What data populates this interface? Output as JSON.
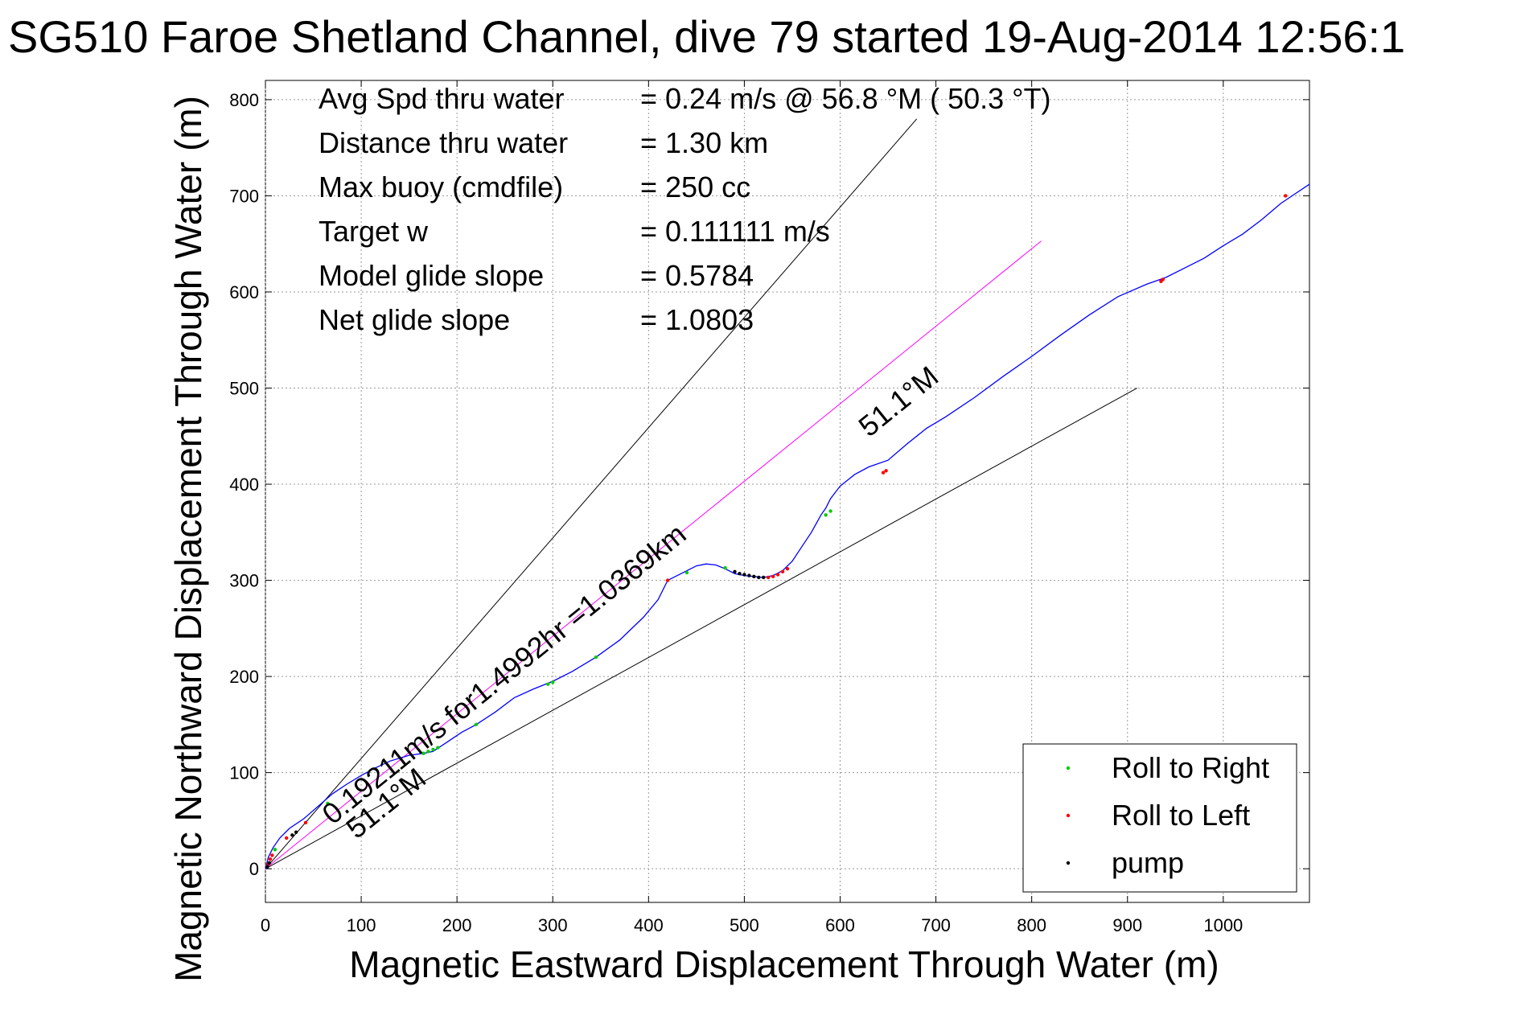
{
  "chart_data": {
    "type": "line",
    "title": "SG510 Faroe Shetland Channel, dive 79 started 19-Aug-2014 12:56:1",
    "xlabel": "Magnetic Eastward Displacement Through Water (m)",
    "ylabel": "Magnetic Northward Displacement Through Water (m)",
    "xlim": [
      0,
      1090
    ],
    "ylim": [
      -35,
      820
    ],
    "xticks": [
      0,
      100,
      200,
      300,
      400,
      500,
      600,
      700,
      800,
      900,
      1000
    ],
    "yticks": [
      0,
      100,
      200,
      300,
      400,
      500,
      600,
      700,
      800
    ],
    "grid": true,
    "legend_position": "bottom-right",
    "legend": [
      {
        "label": "Roll to Right",
        "color": "#00cc00"
      },
      {
        "label": "Roll to Left",
        "color": "#ff0000"
      },
      {
        "label": "pump",
        "color": "#000000"
      }
    ],
    "info": [
      {
        "label": "Avg Spd thru water",
        "value": "=  0.24 m/s @  56.8 °M ( 50.3 °T)"
      },
      {
        "label": "Distance thru water",
        "value": "=  1.30 km"
      },
      {
        "label": "Max buoy (cmdfile)",
        "value": "= 250 cc"
      },
      {
        "label": "Target w",
        "value": "= 0.111111 m/s"
      },
      {
        "label": "Model glide slope",
        "value": "= 0.5784"
      },
      {
        "label": "Net glide slope",
        "value": "= 1.0803"
      }
    ],
    "annotations": {
      "speed_label": "0.19211m/s for1.4992hr =1.0369km",
      "heading_label_lower": "51.1°M",
      "heading_label_upper": "51.1°M"
    },
    "reference_lines": [
      {
        "name": "upper-bound",
        "color": "#000000",
        "x": [
          0,
          680
        ],
        "y": [
          0,
          780
        ]
      },
      {
        "name": "lower-bound",
        "color": "#000000",
        "x": [
          0,
          910
        ],
        "y": [
          0,
          500
        ]
      },
      {
        "name": "heading",
        "color": "#ff00ff",
        "x": [
          0,
          810
        ],
        "y": [
          0,
          653
        ]
      }
    ],
    "series": [
      {
        "name": "track",
        "color": "#0000ff",
        "x": [
          0,
          3,
          8,
          15,
          25,
          40,
          55,
          70,
          85,
          100,
          115,
          130,
          150,
          165,
          175,
          190,
          205,
          220,
          240,
          260,
          280,
          300,
          320,
          345,
          370,
          395,
          410,
          420,
          430,
          440,
          450,
          460,
          470,
          480,
          490,
          500,
          510,
          520,
          530,
          540,
          550,
          560,
          570,
          580,
          585,
          590,
          600,
          615,
          630,
          650,
          670,
          690,
          710,
          740,
          770,
          800,
          830,
          860,
          890,
          920,
          940,
          960,
          980,
          1000,
          1020,
          1040,
          1060,
          1075,
          1090
        ],
        "y": [
          0,
          12,
          22,
          32,
          42,
          52,
          65,
          78,
          88,
          97,
          105,
          112,
          118,
          120,
          122,
          132,
          142,
          150,
          163,
          178,
          187,
          195,
          205,
          220,
          238,
          262,
          280,
          300,
          305,
          310,
          315,
          317,
          316,
          312,
          307,
          305,
          304,
          303,
          305,
          310,
          320,
          335,
          350,
          368,
          375,
          385,
          398,
          410,
          418,
          425,
          442,
          458,
          470,
          490,
          512,
          533,
          555,
          576,
          595,
          608,
          615,
          625,
          635,
          648,
          660,
          675,
          692,
          702,
          712
        ]
      },
      {
        "name": "Roll to Right",
        "color": "#00cc00",
        "x": [
          10,
          65,
          165,
          170,
          175,
          180,
          220,
          295,
          300,
          345,
          440,
          480,
          585,
          590
        ],
        "y": [
          20,
          68,
          120,
          122,
          124,
          126,
          150,
          192,
          194,
          220,
          308,
          313,
          368,
          372
        ]
      },
      {
        "name": "Roll to Left",
        "color": "#ff0000",
        "x": [
          3,
          5,
          7,
          22,
          42,
          420,
          525,
          530,
          535,
          540,
          545,
          645,
          648,
          935,
          937,
          1065
        ],
        "y": [
          5,
          10,
          14,
          32,
          48,
          300,
          303,
          304,
          306,
          309,
          312,
          412,
          414,
          611,
          613,
          700
        ]
      },
      {
        "name": "pump",
        "color": "#000000",
        "x": [
          2,
          4,
          28,
          32,
          490,
          495,
          500,
          505,
          510,
          515,
          520
        ],
        "y": [
          2,
          6,
          35,
          38,
          309,
          307,
          306,
          305,
          304,
          303,
          303
        ]
      }
    ]
  }
}
